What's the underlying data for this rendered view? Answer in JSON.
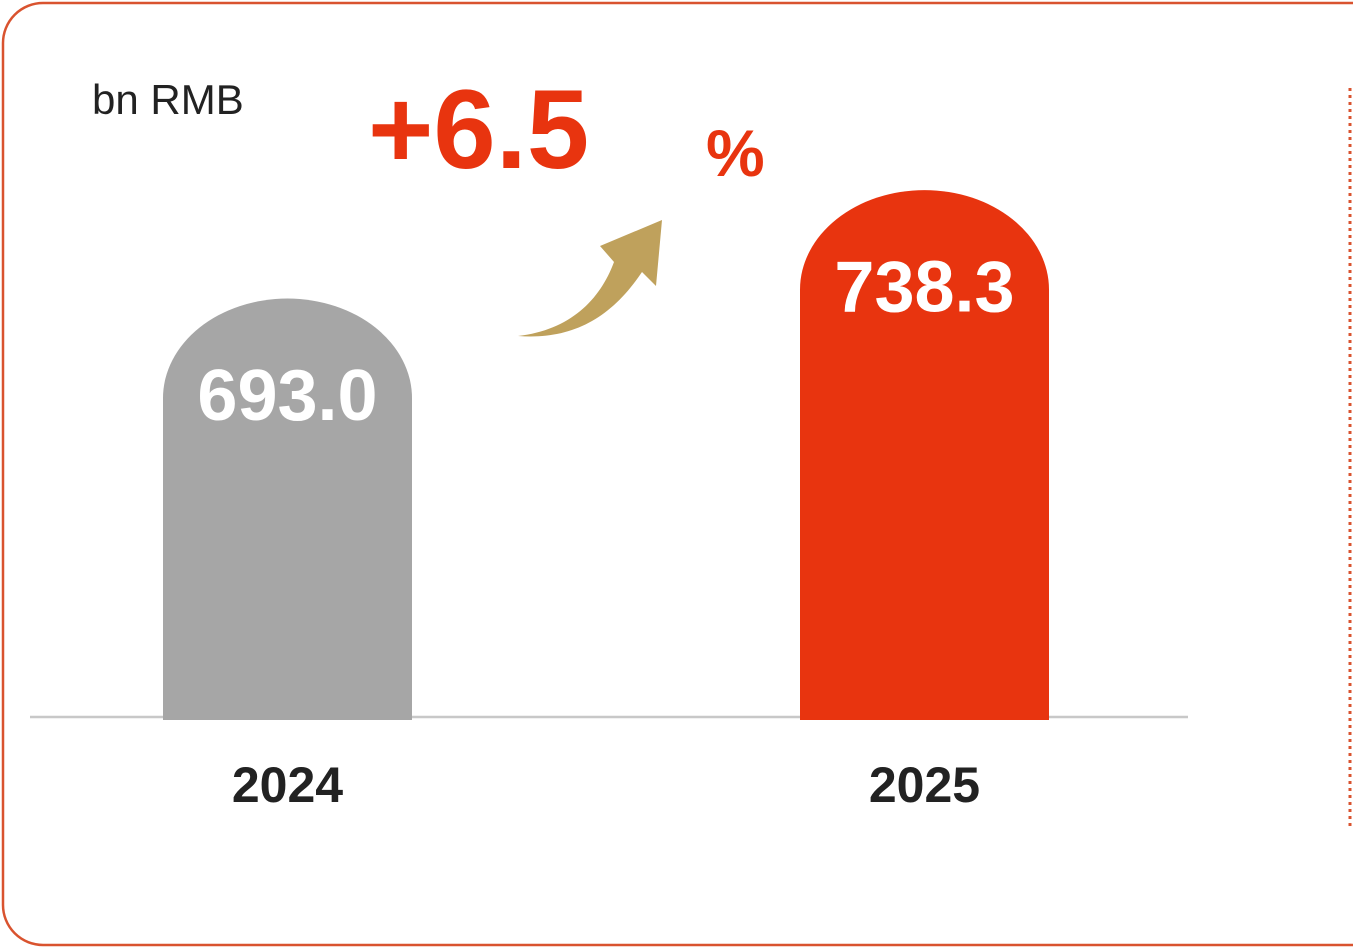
{
  "chart_data": {
    "type": "bar",
    "unit": "bn RMB",
    "annotation": "+6.5",
    "annotation_unit": "%",
    "categories": [
      "2024",
      "2025"
    ],
    "values": [
      693.0,
      738.3
    ],
    "value_labels": [
      "693.0",
      "738.3"
    ],
    "colors": [
      "#a6a6a6",
      "#e8340f"
    ],
    "ylim": [
      517,
      738.3
    ]
  }
}
